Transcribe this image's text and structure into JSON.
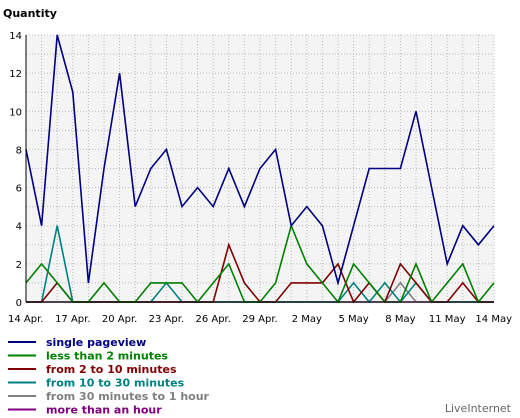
{
  "chart_data": {
    "type": "line",
    "title": "",
    "ylabel": "Quantity",
    "xlabel": "",
    "ylim": [
      0,
      14
    ],
    "yticks": [
      0,
      2,
      4,
      6,
      8,
      10,
      12,
      14
    ],
    "x": [
      "14 Apr.",
      "15 Apr.",
      "16 Apr.",
      "17 Apr.",
      "18 Apr.",
      "19 Apr.",
      "20 Apr.",
      "21 Apr.",
      "22 Apr.",
      "23 Apr.",
      "24 Apr.",
      "25 Apr.",
      "26 Apr.",
      "27 Apr.",
      "28 Apr.",
      "29 Apr.",
      "30 Apr.",
      "1 May",
      "2 May",
      "3 May",
      "4 May",
      "5 May",
      "6 May",
      "7 May",
      "8 May",
      "9 May",
      "10 May",
      "11 May",
      "12 May",
      "13 May",
      "14 May"
    ],
    "xtick_labels": [
      "14 Apr.",
      "17 Apr.",
      "20 Apr.",
      "23 Apr.",
      "26 Apr.",
      "29 Apr.",
      "2 May",
      "5 May",
      "8 May",
      "11 May",
      "14 May"
    ],
    "grid": true,
    "legend_position": "bottom",
    "series": [
      {
        "name": "single pageview",
        "color": "#000080",
        "values": [
          8,
          4,
          14,
          11,
          1,
          7,
          12,
          5,
          7,
          8,
          5,
          6,
          5,
          7,
          5,
          7,
          8,
          4,
          5,
          4,
          1,
          4,
          7,
          7,
          7,
          10,
          6,
          2,
          4,
          3,
          4
        ]
      },
      {
        "name": "less than 2 minutes",
        "color": "#008000",
        "values": [
          1,
          2,
          1,
          0,
          0,
          1,
          0,
          0,
          1,
          1,
          1,
          0,
          1,
          2,
          0,
          0,
          1,
          4,
          2,
          1,
          0,
          2,
          1,
          0,
          0,
          2,
          0,
          1,
          2,
          0,
          1
        ]
      },
      {
        "name": "from 2 to 10 minutes",
        "color": "#800000",
        "values": [
          0,
          0,
          1,
          0,
          0,
          0,
          0,
          0,
          0,
          0,
          0,
          0,
          0,
          3,
          1,
          0,
          0,
          1,
          1,
          1,
          2,
          0,
          1,
          0,
          2,
          1,
          0,
          0,
          1,
          0,
          0
        ]
      },
      {
        "name": "from 10 to 30 minutes",
        "color": "#008080",
        "values": [
          0,
          0,
          4,
          0,
          0,
          0,
          0,
          0,
          0,
          1,
          0,
          0,
          0,
          0,
          0,
          0,
          0,
          0,
          0,
          0,
          0,
          1,
          0,
          1,
          0,
          1,
          0,
          0,
          0,
          0,
          0
        ]
      },
      {
        "name": "from 30 minutes to 1 hour",
        "color": "#808080",
        "values": [
          0,
          0,
          0,
          0,
          0,
          0,
          0,
          0,
          0,
          0,
          0,
          0,
          0,
          0,
          0,
          0,
          0,
          0,
          0,
          0,
          0,
          0,
          0,
          0,
          1,
          0,
          0,
          0,
          0,
          0,
          0
        ]
      },
      {
        "name": "more than an hour",
        "color": "#800080",
        "values": [
          0,
          0,
          0,
          0,
          0,
          0,
          0,
          0,
          0,
          0,
          0,
          0,
          0,
          0,
          0,
          0,
          0,
          0,
          0,
          0,
          0,
          0,
          0,
          0,
          0,
          0,
          0,
          0,
          0,
          0,
          0
        ]
      }
    ]
  },
  "brand": "LiveInternet"
}
